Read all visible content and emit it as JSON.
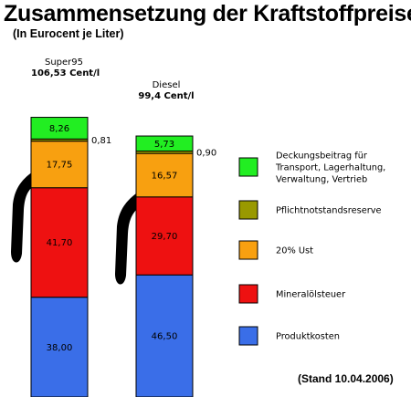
{
  "title": "Zusammensetzung der Kraftstoffpreise",
  "subtitle": "(In Eurocent je Liter)",
  "stand": "(Stand 10.04.2006)",
  "chart_data": {
    "type": "bar",
    "stacked": true,
    "categories": [
      "Super95",
      "Diesel"
    ],
    "totals_label": [
      "106,53 Cent/l",
      "99,4 Cent/l"
    ],
    "totals": [
      106.53,
      99.4
    ],
    "series": [
      {
        "name": "Produktkosten",
        "values": [
          38.0,
          46.5
        ],
        "labels": [
          "38,00",
          "46,50"
        ],
        "color": "#3a6ee8"
      },
      {
        "name": "Mineralölsteuer",
        "values": [
          41.7,
          29.7
        ],
        "labels": [
          "41,70",
          "29,70"
        ],
        "color": "#ee1111"
      },
      {
        "name": "20% Ust",
        "values": [
          17.75,
          16.57
        ],
        "labels": [
          "17,75",
          "16,57"
        ],
        "color": "#f8a010"
      },
      {
        "name": "Pflichtnotstandsreserve",
        "values": [
          0.81,
          0.9
        ],
        "labels": [
          "0,81",
          "0,90"
        ],
        "color": "#999900"
      },
      {
        "name": "Deckungsbeitrag für Transport, Lagerhaltung, Verwaltung, Vertrieb",
        "values": [
          8.26,
          5.73
        ],
        "labels": [
          "8,26",
          "5,73"
        ],
        "color": "#22ee22"
      }
    ],
    "legend": {
      "position": "right",
      "entries": [
        {
          "lines": [
            "Deckungsbeitrag für",
            "Transport, Lagerhaltung,",
            "Verwaltung, Vertrieb"
          ],
          "color": "#22ee22"
        },
        {
          "lines": [
            "Pflichtnotstandsreserve"
          ],
          "color": "#999900"
        },
        {
          "lines": [
            "20% Ust"
          ],
          "color": "#f8a010"
        },
        {
          "lines": [
            "Mineralölsteuer"
          ],
          "color": "#ee1111"
        },
        {
          "lines": [
            "Produktkosten"
          ],
          "color": "#3a6ee8"
        }
      ]
    }
  }
}
